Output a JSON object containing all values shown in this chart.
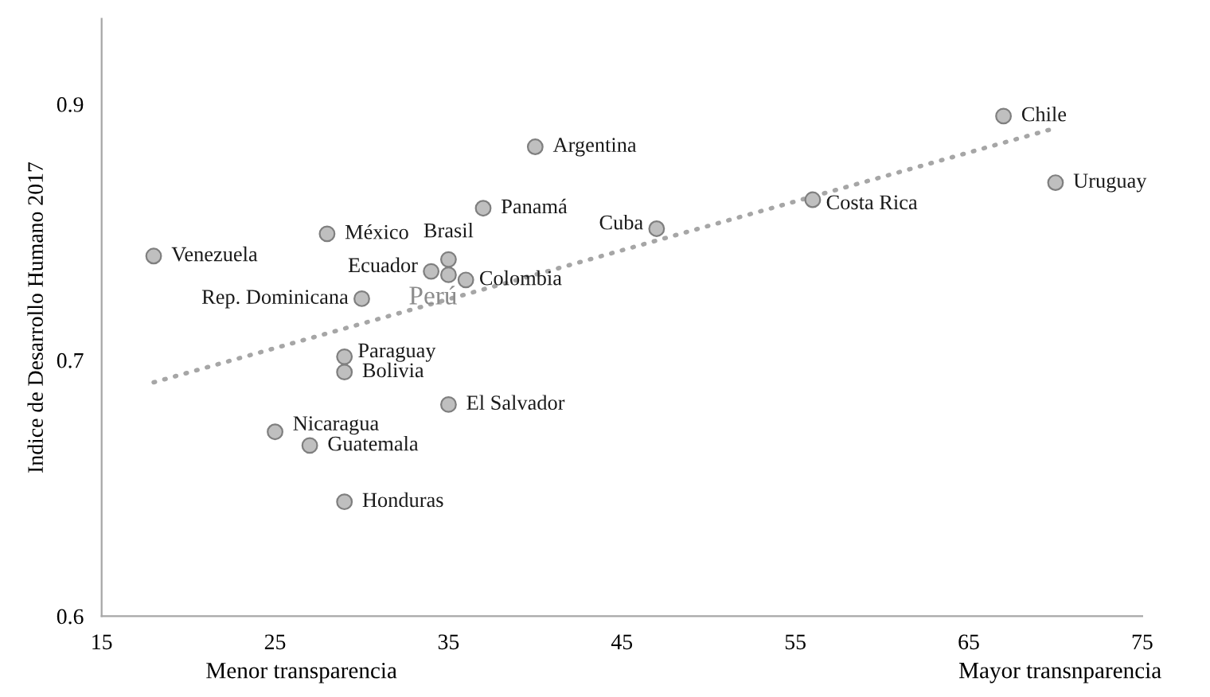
{
  "chart_data": {
    "type": "scatter",
    "ylabel": "Indice de Desarrollo Humano 2017",
    "annotations": [
      "Menor transparencia",
      "Mayor transnparencia"
    ],
    "xlim": [
      15,
      75
    ],
    "xticks": [
      15,
      25,
      35,
      45,
      55,
      65,
      75
    ],
    "ylim": [
      0.6,
      0.95
    ],
    "yticks": [
      0.6,
      {
        "value": 0.75,
        "label": "0.7"
      },
      0.9
    ],
    "grid": false,
    "legend": false,
    "marker": "circle",
    "series": [
      {
        "color": "#bfbfbf",
        "x": [
          18,
          28,
          40,
          37,
          35,
          34,
          35,
          36,
          30,
          29,
          29,
          35,
          25,
          27,
          29,
          47,
          56,
          67,
          70
        ],
        "values": [
          0.811,
          0.824,
          0.875,
          0.839,
          0.809,
          0.802,
          0.8,
          0.797,
          0.786,
          0.752,
          0.743,
          0.724,
          0.708,
          0.7,
          0.667,
          0.827,
          0.844,
          0.893,
          0.854
        ],
        "value_labels": [
          "Venezuela",
          "México",
          "Argentina",
          "Panamá",
          "Brasil",
          "Ecuador",
          "Perú",
          "Colombia",
          "Rep. Dominicana",
          "Paraguay",
          "Bolivia",
          "El Salvador",
          "Nicaragua",
          "Guatemala",
          "Honduras",
          "Cuba",
          "Costa Rica",
          "Chile",
          "Uruguay"
        ]
      },
      {
        "type": "line",
        "color": "#a6a6a6",
        "line_style": "dotted",
        "marker": "none",
        "x": [
          18,
          70
        ],
        "values": [
          0.737,
          0.886
        ]
      }
    ]
  }
}
